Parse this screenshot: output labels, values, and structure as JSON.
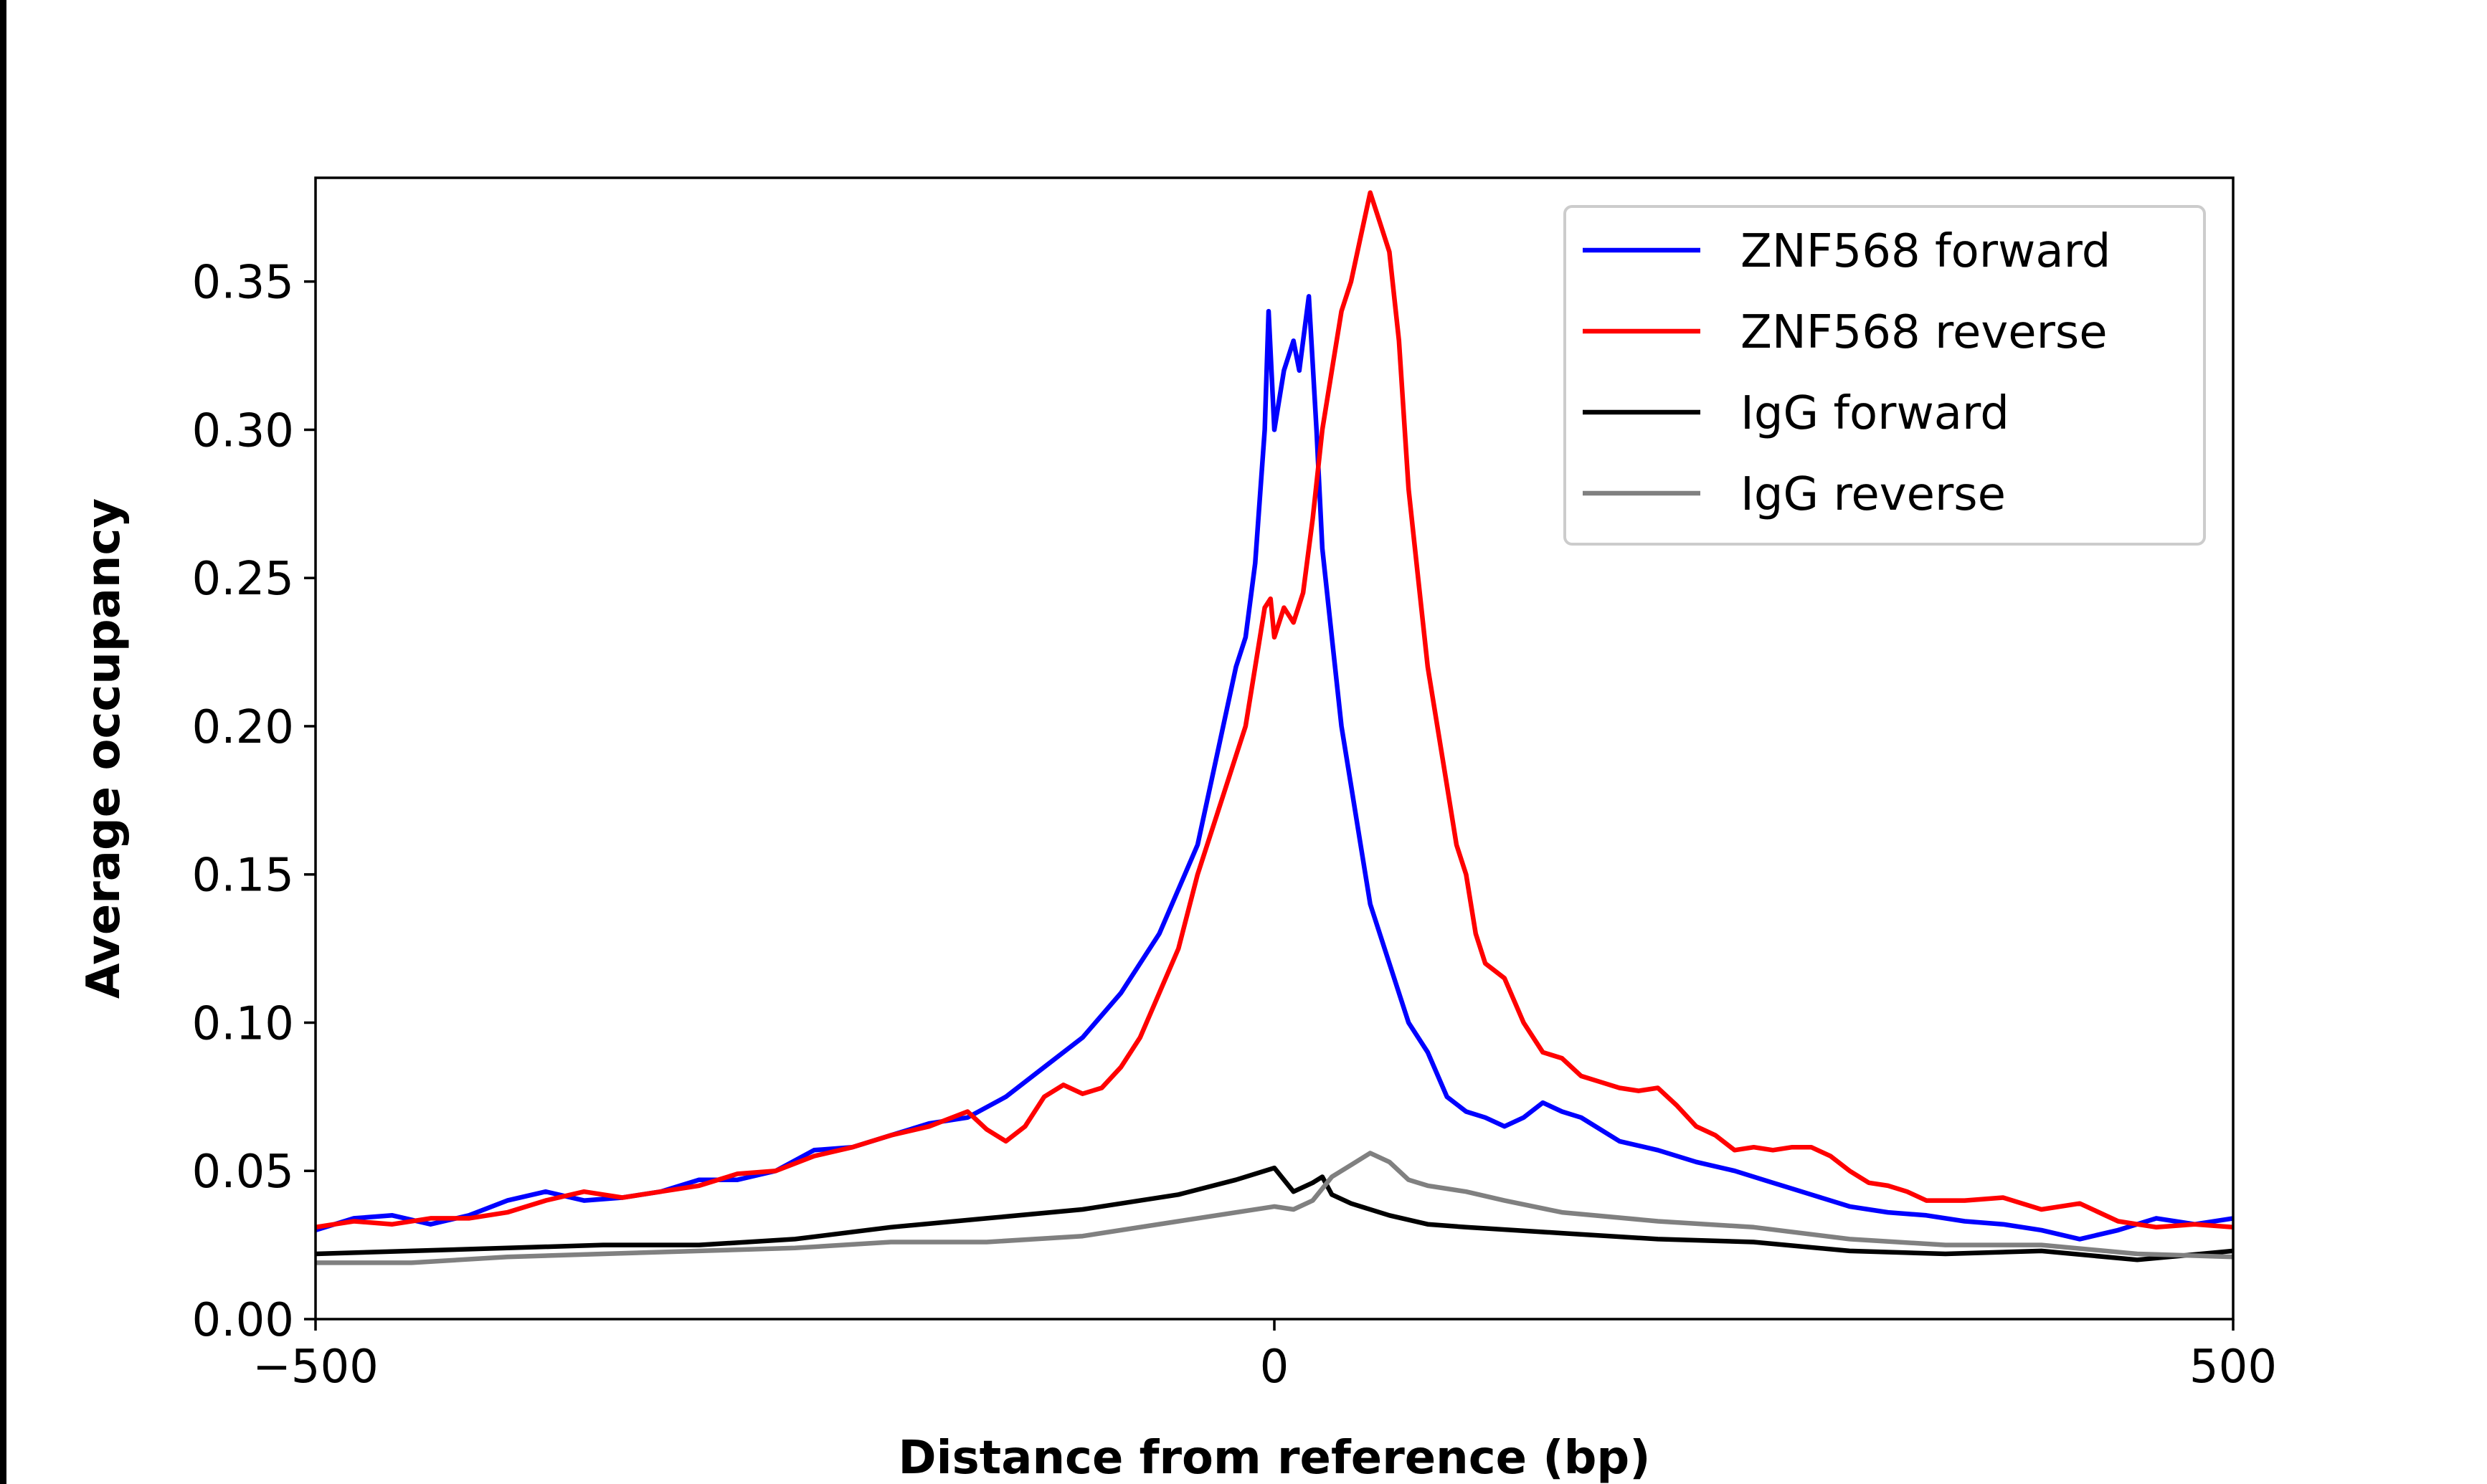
{
  "chart_data": {
    "type": "line",
    "title": "",
    "xlabel": "Distance from reference (bp)",
    "ylabel": "Average occupancy",
    "xlim": [
      -500,
      500
    ],
    "ylim": [
      0,
      0.385
    ],
    "xticks": [
      -500,
      0,
      500
    ],
    "xtick_labels": [
      "−500",
      "0",
      "500"
    ],
    "yticks": [
      0,
      0.05,
      0.1,
      0.15,
      0.2,
      0.25,
      0.3,
      0.35
    ],
    "ytick_labels": [
      "0.00",
      "0.05",
      "0.10",
      "0.15",
      "0.20",
      "0.25",
      "0.30",
      "0.35"
    ],
    "grid": false,
    "legend_position": "top-right",
    "series": [
      {
        "name": "ZNF568 forward",
        "color": "#0000ff",
        "x": [
          -500,
          -480,
          -460,
          -440,
          -420,
          -400,
          -380,
          -360,
          -340,
          -320,
          -300,
          -280,
          -260,
          -240,
          -220,
          -200,
          -180,
          -160,
          -140,
          -120,
          -100,
          -80,
          -60,
          -40,
          -30,
          -20,
          -15,
          -10,
          -5,
          -3,
          0,
          5,
          10,
          13,
          18,
          22,
          25,
          30,
          35,
          40,
          45,
          50,
          60,
          70,
          80,
          90,
          100,
          110,
          120,
          130,
          140,
          150,
          160,
          180,
          200,
          220,
          240,
          260,
          280,
          300,
          320,
          340,
          360,
          380,
          400,
          420,
          440,
          460,
          480,
          500
        ],
        "y": [
          0.03,
          0.034,
          0.035,
          0.032,
          0.035,
          0.04,
          0.043,
          0.04,
          0.041,
          0.043,
          0.047,
          0.047,
          0.05,
          0.057,
          0.058,
          0.062,
          0.066,
          0.068,
          0.075,
          0.085,
          0.095,
          0.11,
          0.13,
          0.16,
          0.19,
          0.22,
          0.23,
          0.255,
          0.3,
          0.34,
          0.3,
          0.32,
          0.33,
          0.32,
          0.345,
          0.3,
          0.26,
          0.23,
          0.2,
          0.18,
          0.16,
          0.14,
          0.12,
          0.1,
          0.09,
          0.075,
          0.07,
          0.068,
          0.065,
          0.068,
          0.073,
          0.07,
          0.068,
          0.06,
          0.057,
          0.053,
          0.05,
          0.046,
          0.042,
          0.038,
          0.036,
          0.035,
          0.033,
          0.032,
          0.03,
          0.027,
          0.03,
          0.034,
          0.032,
          0.034
        ]
      },
      {
        "name": "ZNF568 reverse",
        "color": "#ff0000",
        "x": [
          -500,
          -480,
          -460,
          -440,
          -420,
          -400,
          -380,
          -360,
          -340,
          -320,
          -300,
          -280,
          -260,
          -240,
          -220,
          -200,
          -180,
          -160,
          -150,
          -140,
          -130,
          -120,
          -110,
          -100,
          -90,
          -80,
          -70,
          -60,
          -50,
          -40,
          -30,
          -20,
          -15,
          -10,
          -5,
          -2,
          0,
          5,
          10,
          15,
          20,
          25,
          30,
          35,
          40,
          45,
          50,
          55,
          60,
          65,
          70,
          75,
          80,
          85,
          90,
          95,
          100,
          105,
          110,
          120,
          130,
          140,
          150,
          160,
          170,
          180,
          190,
          200,
          210,
          220,
          230,
          240,
          250,
          260,
          270,
          280,
          290,
          300,
          310,
          320,
          330,
          340,
          360,
          380,
          400,
          420,
          440,
          460,
          480,
          500
        ],
        "y": [
          0.031,
          0.033,
          0.032,
          0.034,
          0.034,
          0.036,
          0.04,
          0.043,
          0.041,
          0.043,
          0.045,
          0.049,
          0.05,
          0.055,
          0.058,
          0.062,
          0.065,
          0.07,
          0.064,
          0.06,
          0.065,
          0.075,
          0.079,
          0.076,
          0.078,
          0.085,
          0.095,
          0.11,
          0.125,
          0.15,
          0.17,
          0.19,
          0.2,
          0.22,
          0.24,
          0.243,
          0.23,
          0.24,
          0.235,
          0.245,
          0.27,
          0.3,
          0.32,
          0.34,
          0.35,
          0.365,
          0.38,
          0.37,
          0.36,
          0.33,
          0.28,
          0.25,
          0.22,
          0.2,
          0.18,
          0.16,
          0.15,
          0.13,
          0.12,
          0.115,
          0.1,
          0.09,
          0.088,
          0.082,
          0.08,
          0.078,
          0.077,
          0.078,
          0.072,
          0.065,
          0.062,
          0.057,
          0.058,
          0.057,
          0.058,
          0.058,
          0.055,
          0.05,
          0.046,
          0.045,
          0.043,
          0.04,
          0.04,
          0.041,
          0.037,
          0.039,
          0.033,
          0.031,
          0.032,
          0.031
        ]
      },
      {
        "name": "IgG forward",
        "color": "#000000",
        "x": [
          -500,
          -450,
          -400,
          -350,
          -300,
          -250,
          -200,
          -150,
          -100,
          -50,
          -20,
          0,
          10,
          20,
          25,
          30,
          40,
          60,
          80,
          100,
          150,
          200,
          250,
          300,
          350,
          400,
          450,
          500
        ],
        "y": [
          0.022,
          0.023,
          0.024,
          0.025,
          0.025,
          0.027,
          0.031,
          0.034,
          0.037,
          0.042,
          0.047,
          0.051,
          0.043,
          0.046,
          0.048,
          0.042,
          0.039,
          0.035,
          0.032,
          0.031,
          0.029,
          0.027,
          0.026,
          0.023,
          0.022,
          0.023,
          0.02,
          0.023
        ]
      },
      {
        "name": "IgG reverse",
        "color": "#808080",
        "x": [
          -500,
          -450,
          -400,
          -350,
          -300,
          -250,
          -200,
          -150,
          -100,
          -50,
          0,
          10,
          20,
          30,
          40,
          50,
          60,
          70,
          80,
          100,
          120,
          150,
          200,
          250,
          300,
          350,
          400,
          450,
          500
        ],
        "y": [
          0.019,
          0.019,
          0.021,
          0.022,
          0.023,
          0.024,
          0.026,
          0.026,
          0.028,
          0.033,
          0.038,
          0.037,
          0.04,
          0.048,
          0.052,
          0.056,
          0.053,
          0.047,
          0.045,
          0.043,
          0.04,
          0.036,
          0.033,
          0.031,
          0.027,
          0.025,
          0.025,
          0.022,
          0.021
        ]
      }
    ]
  }
}
